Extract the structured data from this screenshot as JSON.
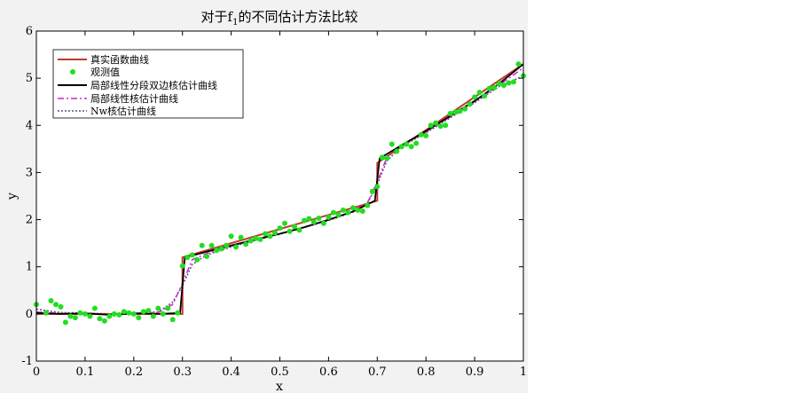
{
  "chart_data": {
    "type": "line",
    "title": "对于f1的不同估计方法比较",
    "title_main": "对于f",
    "title_sub": "1",
    "title_rest": "的不同估计方法比较",
    "xlabel": "x",
    "ylabel": "y",
    "xlim": [
      0,
      1
    ],
    "ylim": [
      -1,
      6
    ],
    "xticks": [
      "0",
      "0.1",
      "0.2",
      "0.3",
      "0.4",
      "0.5",
      "0.6",
      "0.7",
      "0.8",
      "0.9",
      "1"
    ],
    "yticks": [
      "-1",
      "0",
      "1",
      "2",
      "3",
      "4",
      "5",
      "6"
    ],
    "grid": false,
    "legend_position": "top-left",
    "colors": {
      "true": "#c0392b",
      "observed": "#22dd22",
      "piecewise": "#000000",
      "local": "#d020d0",
      "nw": "#555577",
      "plot_bg": "#ffffff",
      "figure_bg": "#f2f2f2"
    },
    "legend": [
      {
        "name": "真实函数曲线",
        "style": "solid-red"
      },
      {
        "name": "观测值",
        "style": "green-dot"
      },
      {
        "name": "局部线性分段双边核估计曲线",
        "style": "solid-black"
      },
      {
        "name": "局部线性核估计曲线",
        "style": "dashdot-magenta"
      },
      {
        "name": "Nw核估计曲线",
        "style": "dotted-gray"
      }
    ],
    "series": [
      {
        "name": "真实函数曲线",
        "x": [
          0,
          0.3,
          0.3,
          0.7,
          0.7,
          1.0
        ],
        "y": [
          0,
          0,
          1.2,
          2.4,
          3.2,
          5.3
        ]
      },
      {
        "name": "局部线性分段双边核估计曲线",
        "x": [
          0,
          0.05,
          0.1,
          0.15,
          0.2,
          0.25,
          0.295,
          0.305,
          0.35,
          0.4,
          0.45,
          0.5,
          0.55,
          0.6,
          0.65,
          0.695,
          0.705,
          0.75,
          0.8,
          0.85,
          0.9,
          0.95,
          1.0
        ],
        "y": [
          0.02,
          0.0,
          0.01,
          -0.02,
          0.01,
          0.0,
          0.02,
          1.2,
          1.32,
          1.45,
          1.58,
          1.7,
          1.84,
          2.0,
          2.17,
          2.4,
          3.3,
          3.58,
          3.88,
          4.2,
          4.52,
          4.88,
          5.3
        ]
      },
      {
        "name": "局部线性核估计曲线",
        "x": [
          0,
          0.05,
          0.1,
          0.15,
          0.2,
          0.25,
          0.28,
          0.3,
          0.32,
          0.35,
          0.4,
          0.45,
          0.5,
          0.55,
          0.6,
          0.65,
          0.68,
          0.7,
          0.72,
          0.75,
          0.8,
          0.85,
          0.9,
          0.95,
          1.0
        ],
        "y": [
          0.04,
          0.01,
          0.02,
          -0.01,
          0.02,
          0.03,
          0.2,
          0.65,
          1.15,
          1.28,
          1.44,
          1.57,
          1.7,
          1.84,
          1.99,
          2.18,
          2.36,
          2.8,
          3.33,
          3.57,
          3.86,
          4.18,
          4.5,
          4.85,
          5.22
        ]
      },
      {
        "name": "Nw核估计曲线",
        "x": [
          0,
          0.05,
          0.1,
          0.15,
          0.2,
          0.25,
          0.28,
          0.3,
          0.32,
          0.35,
          0.4,
          0.45,
          0.5,
          0.55,
          0.6,
          0.65,
          0.68,
          0.7,
          0.72,
          0.75,
          0.8,
          0.85,
          0.9,
          0.95,
          1.0
        ],
        "y": [
          0.1,
          0.03,
          0.02,
          0.0,
          0.02,
          0.04,
          0.25,
          0.6,
          1.05,
          1.25,
          1.42,
          1.56,
          1.69,
          1.83,
          1.98,
          2.16,
          2.35,
          2.75,
          3.25,
          3.55,
          3.84,
          4.16,
          4.48,
          4.82,
          5.05
        ]
      },
      {
        "name": "观测值",
        "x": [
          0.0,
          0.02,
          0.03,
          0.04,
          0.05,
          0.06,
          0.07,
          0.08,
          0.09,
          0.1,
          0.11,
          0.12,
          0.13,
          0.14,
          0.15,
          0.16,
          0.17,
          0.18,
          0.19,
          0.2,
          0.21,
          0.22,
          0.23,
          0.24,
          0.25,
          0.26,
          0.27,
          0.28,
          0.29,
          0.3,
          0.31,
          0.32,
          0.33,
          0.34,
          0.35,
          0.36,
          0.37,
          0.38,
          0.39,
          0.4,
          0.41,
          0.42,
          0.43,
          0.44,
          0.45,
          0.46,
          0.47,
          0.48,
          0.49,
          0.5,
          0.51,
          0.52,
          0.53,
          0.54,
          0.55,
          0.56,
          0.57,
          0.58,
          0.59,
          0.6,
          0.61,
          0.62,
          0.63,
          0.64,
          0.65,
          0.66,
          0.67,
          0.68,
          0.69,
          0.7,
          0.71,
          0.72,
          0.73,
          0.74,
          0.75,
          0.76,
          0.77,
          0.78,
          0.79,
          0.8,
          0.81,
          0.82,
          0.83,
          0.84,
          0.85,
          0.86,
          0.87,
          0.88,
          0.89,
          0.9,
          0.91,
          0.92,
          0.93,
          0.94,
          0.95,
          0.96,
          0.97,
          0.98,
          0.99,
          1.0
        ],
        "y": [
          0.2,
          0.02,
          0.28,
          0.2,
          0.15,
          -0.18,
          -0.05,
          -0.08,
          0.02,
          0.0,
          -0.05,
          0.12,
          -0.1,
          -0.15,
          -0.05,
          0.0,
          -0.02,
          0.05,
          0.02,
          0.0,
          -0.08,
          0.05,
          0.07,
          -0.05,
          0.12,
          0.0,
          0.12,
          -0.12,
          0.02,
          1.02,
          1.2,
          1.25,
          1.15,
          1.45,
          1.22,
          1.45,
          1.35,
          1.38,
          1.45,
          1.65,
          1.42,
          1.62,
          1.48,
          1.55,
          1.6,
          1.58,
          1.7,
          1.65,
          1.72,
          1.82,
          1.92,
          1.75,
          1.85,
          1.78,
          1.98,
          2.02,
          1.95,
          2.03,
          1.92,
          2.05,
          2.15,
          2.1,
          2.2,
          2.15,
          2.25,
          2.2,
          2.18,
          2.3,
          2.6,
          2.7,
          3.32,
          3.3,
          3.6,
          3.45,
          3.55,
          3.6,
          3.55,
          3.62,
          3.8,
          3.78,
          4.0,
          4.05,
          3.98,
          4.0,
          4.25,
          4.28,
          4.3,
          4.35,
          4.45,
          4.6,
          4.7,
          4.62,
          4.78,
          4.8,
          4.88,
          4.85,
          4.9,
          4.92,
          5.3,
          5.05
        ]
      }
    ]
  }
}
